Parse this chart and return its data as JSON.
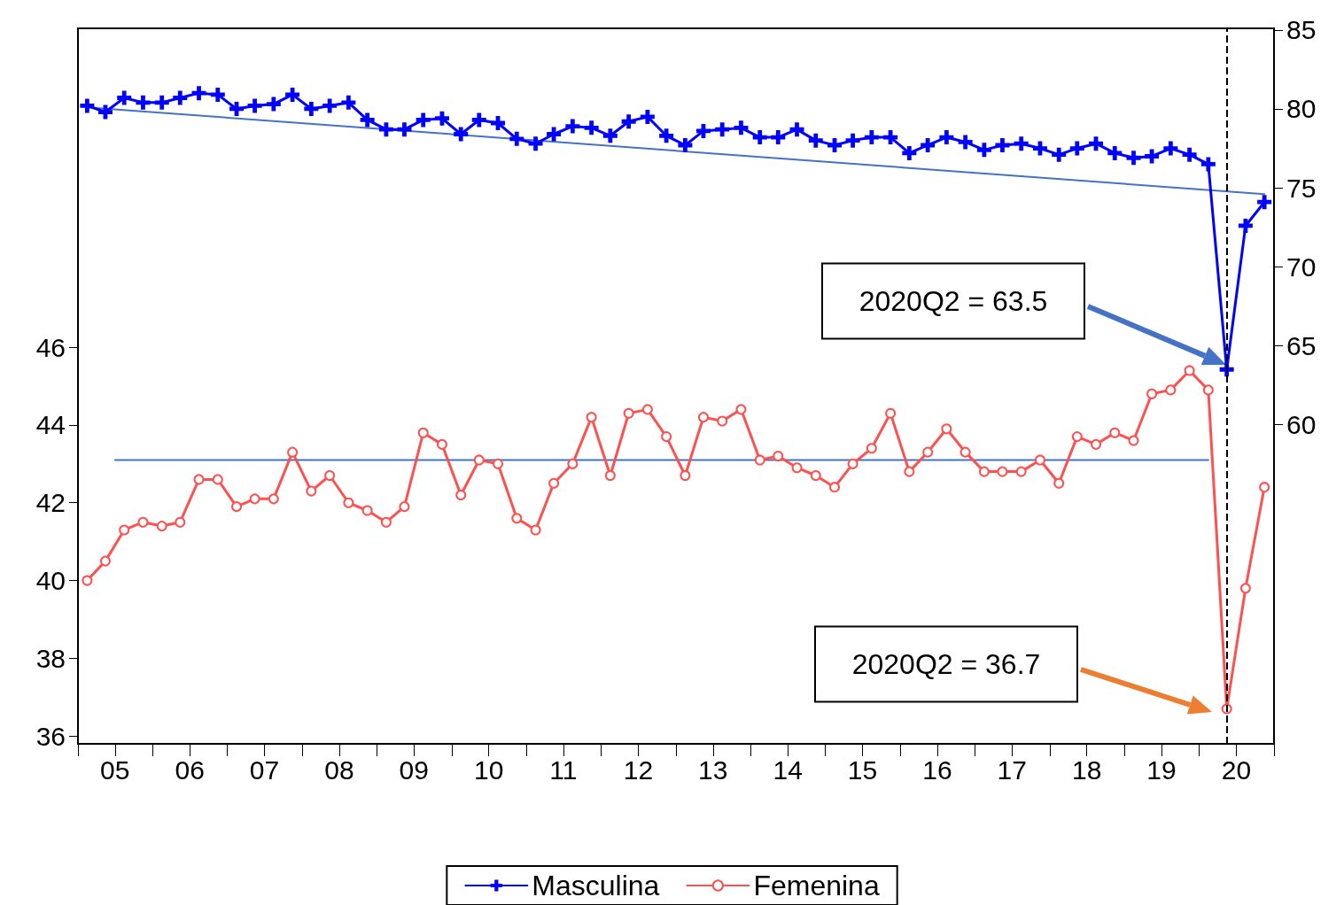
{
  "chart_data": {
    "type": "line",
    "legend": "bottom",
    "grid": false,
    "x": [
      "2005-02-15",
      "2005-05-15",
      "2005-08-15",
      "2005-11-15",
      "2006-02-15",
      "2006-05-15",
      "2006-08-15",
      "2006-11-15",
      "2007-02-15",
      "2007-05-15",
      "2007-08-15",
      "2007-11-15",
      "2008-02-15",
      "2008-05-15",
      "2008-08-15",
      "2008-11-15",
      "2009-02-15",
      "2009-05-15",
      "2009-08-15",
      "2009-11-15",
      "2010-02-15",
      "2010-05-15",
      "2010-08-15",
      "2010-11-15",
      "2011-02-15",
      "2011-05-15",
      "2011-08-15",
      "2011-11-15",
      "2012-02-15",
      "2012-05-15",
      "2012-08-15",
      "2012-11-15",
      "2013-02-15",
      "2013-05-15",
      "2013-08-15",
      "2013-11-15",
      "2014-02-15",
      "2014-05-15",
      "2014-08-15",
      "2014-11-15",
      "2015-02-15",
      "2015-05-15",
      "2015-08-15",
      "2015-11-15",
      "2016-02-15",
      "2016-05-15",
      "2016-08-15",
      "2016-11-15",
      "2017-02-15",
      "2017-05-15",
      "2017-08-15",
      "2017-11-15",
      "2018-02-15",
      "2018-05-15",
      "2018-08-15",
      "2018-11-15",
      "2019-02-15",
      "2019-05-15",
      "2019-08-15",
      "2019-11-15",
      "2020-02-15",
      "2020-05-15",
      "2020-08-15",
      "2020-11-15"
    ],
    "series": [
      {
        "name": "Masculina",
        "color": "#0000ff",
        "axis": "y2",
        "marker": "cross",
        "values": [
          80.2,
          79.8,
          80.7,
          80.4,
          80.4,
          80.7,
          81.0,
          80.9,
          80.0,
          80.2,
          80.3,
          80.9,
          80.0,
          80.2,
          80.4,
          79.3,
          78.7,
          78.7,
          79.3,
          79.4,
          78.4,
          79.3,
          79.1,
          78.1,
          77.8,
          78.4,
          78.9,
          78.8,
          78.3,
          79.2,
          79.5,
          78.3,
          77.7,
          78.6,
          78.7,
          78.8,
          78.2,
          78.2,
          78.7,
          78.0,
          77.7,
          78.0,
          78.2,
          78.2,
          77.2,
          77.7,
          78.2,
          77.9,
          77.4,
          77.7,
          77.8,
          77.5,
          77.1,
          77.5,
          77.8,
          77.2,
          76.9,
          77.0,
          77.5,
          77.1,
          76.5,
          63.5,
          72.6,
          74.1
        ]
      },
      {
        "name": "Femenina",
        "color": "#ff5050",
        "marker": "circle",
        "values": [
          40.0,
          40.5,
          41.3,
          41.5,
          41.4,
          41.5,
          42.6,
          42.6,
          41.9,
          42.1,
          42.1,
          43.3,
          42.3,
          42.7,
          42.0,
          41.8,
          41.5,
          41.9,
          43.8,
          43.5,
          42.2,
          43.1,
          43.0,
          41.6,
          41.3,
          42.5,
          43.0,
          44.2,
          42.7,
          44.3,
          44.4,
          43.7,
          42.7,
          44.2,
          44.1,
          44.4,
          43.1,
          43.2,
          42.9,
          42.7,
          42.4,
          43.0,
          43.4,
          44.3,
          42.8,
          43.3,
          43.9,
          43.3,
          42.8,
          42.8,
          42.8,
          43.1,
          42.5,
          43.7,
          43.5,
          43.8,
          43.6,
          44.8,
          44.9,
          45.4,
          44.9,
          36.7,
          39.8,
          42.4
        ]
      },
      {
        "type": "line",
        "color": "#4472c4",
        "axis": "y2",
        "marker": "none",
        "x": [
          "2005-02-15",
          "2020-11-15"
        ],
        "values": [
          80.1,
          74.6
        ]
      },
      {
        "type": "line",
        "color": "#4472c4",
        "marker": "none",
        "x": [
          "2005-07-01",
          "2020-02-15"
        ],
        "values": [
          43.1,
          43.1
        ]
      }
    ],
    "xlim": [
      "2005-01-01",
      "2021-01-01"
    ],
    "xticks": [
      {
        "value": "2005-01-01",
        "label": null
      },
      {
        "value": "2005-07-01",
        "label": "05"
      },
      {
        "value": "2006-01-01",
        "label": null
      },
      {
        "value": "2006-07-01",
        "label": "06"
      },
      {
        "value": "2007-01-01",
        "label": null
      },
      {
        "value": "2007-07-01",
        "label": "07"
      },
      {
        "value": "2008-01-01",
        "label": null
      },
      {
        "value": "2008-07-01",
        "label": "08"
      },
      {
        "value": "2009-01-01",
        "label": null
      },
      {
        "value": "2009-07-01",
        "label": "09"
      },
      {
        "value": "2010-01-01",
        "label": null
      },
      {
        "value": "2010-07-01",
        "label": "10"
      },
      {
        "value": "2011-01-01",
        "label": null
      },
      {
        "value": "2011-07-01",
        "label": "11"
      },
      {
        "value": "2012-01-01",
        "label": null
      },
      {
        "value": "2012-07-01",
        "label": "12"
      },
      {
        "value": "2013-01-01",
        "label": null
      },
      {
        "value": "2013-07-01",
        "label": "13"
      },
      {
        "value": "2014-01-01",
        "label": null
      },
      {
        "value": "2014-07-01",
        "label": "14"
      },
      {
        "value": "2015-01-01",
        "label": null
      },
      {
        "value": "2015-07-01",
        "label": "15"
      },
      {
        "value": "2016-01-01",
        "label": null
      },
      {
        "value": "2016-07-01",
        "label": "16"
      },
      {
        "value": "2017-01-01",
        "label": null
      },
      {
        "value": "2017-07-01",
        "label": "17"
      },
      {
        "value": "2018-01-01",
        "label": null
      },
      {
        "value": "2018-07-01",
        "label": "18"
      },
      {
        "value": "2019-01-01",
        "label": null
      },
      {
        "value": "2019-07-01",
        "label": "19"
      },
      {
        "value": "2020-01-01",
        "label": null
      },
      {
        "value": "2020-07-01",
        "label": "20"
      },
      {
        "value": "2021-01-01",
        "label": null
      }
    ],
    "ylim": [
      35.8,
      54.2
    ],
    "yticks": [
      36,
      38,
      40,
      42,
      44,
      46
    ],
    "y2lim": [
      39.8,
      85.1
    ],
    "y2ticks": [
      60,
      65,
      70,
      75,
      80,
      85
    ],
    "ref_lines": [
      {
        "axis": "x",
        "value": "2020-05-15",
        "color": "#000000",
        "line_style": "dashed"
      }
    ],
    "annotations": [
      "2020Q2 = 63.5",
      "2020Q2 = 36.7"
    ]
  }
}
